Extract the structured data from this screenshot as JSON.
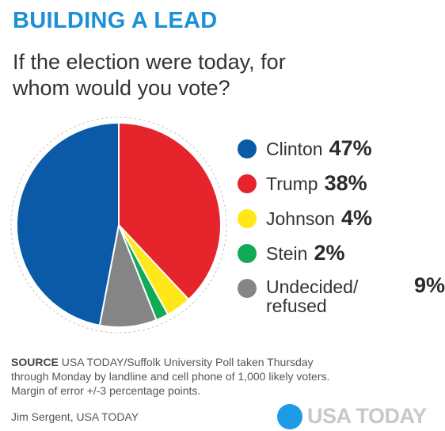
{
  "header": {
    "title": "BUILDING A LEAD",
    "question_line1": "If the election were today, for",
    "question_line2": "whom would you vote?"
  },
  "chart_data": {
    "type": "pie",
    "slices": [
      {
        "name": "Clinton",
        "value": 47,
        "label": "47%",
        "color": "#0a5aa8"
      },
      {
        "name": "Trump",
        "value": 38,
        "label": "38%",
        "color": "#e5252b"
      },
      {
        "name": "Johnson",
        "value": 4,
        "label": "4%",
        "color": "#ffe719"
      },
      {
        "name": "Stein",
        "value": 2,
        "label": "2%",
        "color": "#12a957"
      },
      {
        "name": "Undecided/ refused",
        "value": 9,
        "label": "9%",
        "color": "#858585"
      }
    ],
    "legend_position": "right"
  },
  "legend": {
    "items": [
      {
        "label": "Clinton",
        "value": "47%"
      },
      {
        "label": "Trump",
        "value": "38%"
      },
      {
        "label": "Johnson",
        "value": "4%"
      },
      {
        "label": "Stein",
        "value": "2%"
      },
      {
        "label_line1": "Undecided/",
        "label_line2": "refused",
        "value": "9%"
      }
    ]
  },
  "footer": {
    "source_label": "SOURCE",
    "source_text": " USA TODAY/Suffolk University Poll taken Thursday",
    "source_line2": "through Monday by landline and cell phone of 1,000 likely voters.",
    "source_line3": "Margin of error +/-3 percentage points.",
    "credit": "Jim Sergent, USA TODAY",
    "brand": "USA TODAY",
    "brand_color": "#1e9be5"
  }
}
